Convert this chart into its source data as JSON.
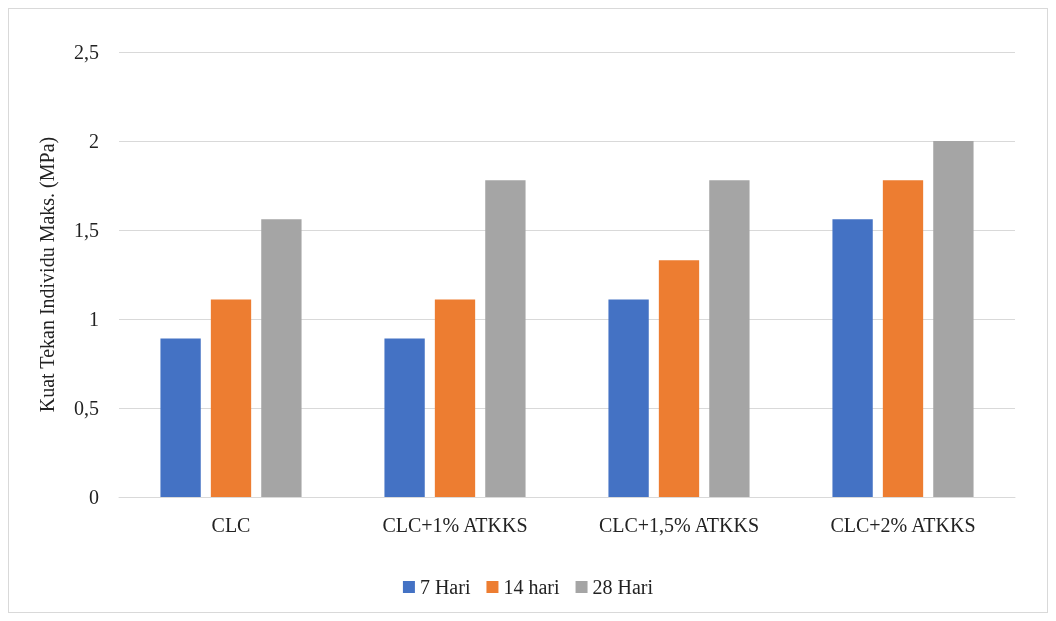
{
  "chart_data": {
    "type": "bar",
    "ylabel": "Kuat Tekan Individu Maks. (MPa)",
    "categories": [
      "CLC",
      "CLC+1% ATKKS",
      "CLC+1,5% ATKKS",
      "CLC+2% ATKKS"
    ],
    "series": [
      {
        "name": "7 Hari",
        "color": "#4472c4",
        "values": [
          0.89,
          0.89,
          1.11,
          1.56
        ]
      },
      {
        "name": "14 hari",
        "color": "#ed7d31",
        "values": [
          1.11,
          1.11,
          1.33,
          1.78
        ]
      },
      {
        "name": "28 Hari",
        "color": "#a5a5a5",
        "values": [
          1.56,
          1.78,
          1.78,
          2.0
        ]
      }
    ],
    "ylim": [
      0,
      2.5
    ],
    "yticks": [
      0,
      {
        "value": 0.5,
        "label": "0,5"
      },
      1,
      {
        "value": 1.5,
        "label": "1,5"
      },
      2,
      {
        "value": 2.5,
        "label": "2,5"
      }
    ],
    "grid": "y",
    "legend": "bottom"
  }
}
